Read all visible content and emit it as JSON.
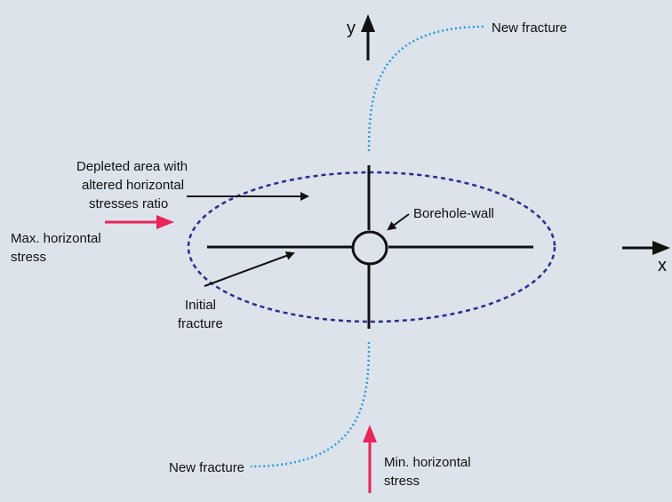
{
  "labels": {
    "y_axis": "y",
    "x_axis": "x",
    "new_fracture_top": "New fracture",
    "new_fracture_bottom": "New fracture",
    "depleted_area": [
      "Depleted area with",
      "altered horizontal",
      "stresses ratio"
    ],
    "borehole": "Borehole-wall",
    "max_stress": [
      "Max. horizontal",
      "stress"
    ],
    "initial_fracture": [
      "Initial",
      "fracture"
    ],
    "min_stress": [
      "Min. horizontal",
      "stress"
    ]
  }
}
